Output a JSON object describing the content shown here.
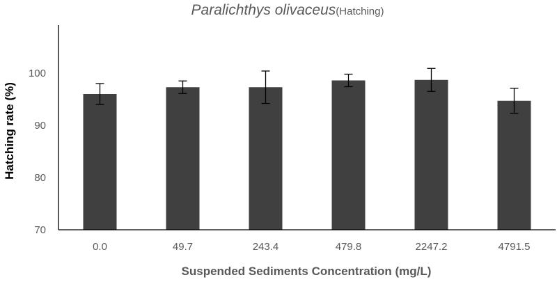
{
  "chart_data": {
    "type": "bar",
    "title": {
      "species": "Paralichthys olivaceus",
      "suffix": "(Hatching)"
    },
    "xlabel": "Suspended Sediments Concentration (mg/L)",
    "ylabel": "Hatching rate (%)",
    "categories": [
      "0.0",
      "49.7",
      "243.4",
      "479.8",
      "2247.2",
      "4791.5"
    ],
    "values": [
      96.0,
      97.3,
      97.3,
      98.6,
      98.7,
      94.7
    ],
    "errors": [
      2.0,
      1.2,
      3.1,
      1.2,
      2.2,
      2.4
    ],
    "ylim": [
      70,
      108
    ],
    "yticks": [
      "70",
      "80",
      "90",
      "100"
    ],
    "grid": false,
    "legend": "none",
    "bar_color": "#404040"
  }
}
